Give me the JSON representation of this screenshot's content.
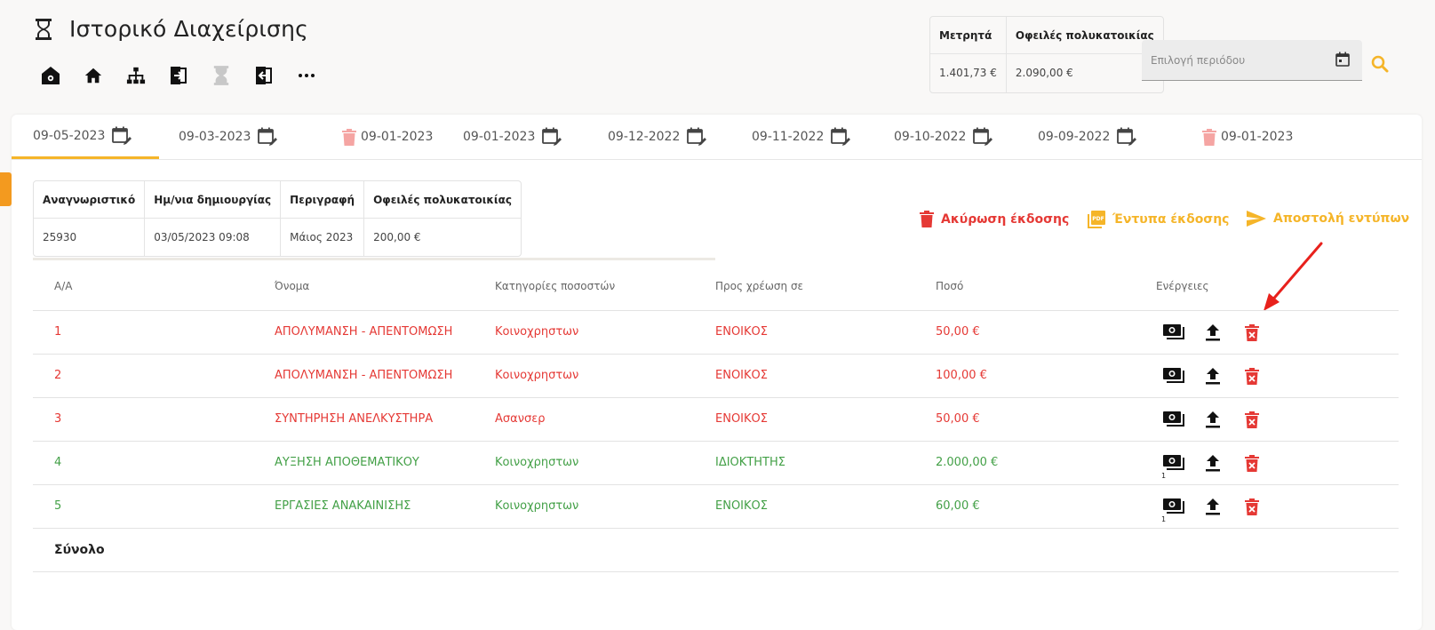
{
  "header": {
    "title": "Ιστορικό Διαχείρισης",
    "nav_icons": [
      "building-settings-icon",
      "home-icon",
      "hierarchy-icon",
      "door-exit-icon",
      "hourglass-icon",
      "door-enter-icon",
      "more-horizontal-icon"
    ]
  },
  "summary": {
    "headers": [
      "Μετρητά",
      "Οφειλές πολυκατοικίας"
    ],
    "values": [
      "1.401,73 €",
      "2.090,00 €"
    ]
  },
  "period": {
    "placeholder": "Επιλογή περιόδου"
  },
  "tabs": [
    {
      "label": "09-05-2023",
      "icon": "calendar-edit-icon",
      "active": true
    },
    {
      "label": "09-03-2023",
      "icon": "calendar-edit-icon"
    },
    {
      "label": "09-01-2023",
      "icon": "trash-icon",
      "deleted": true
    },
    {
      "label": "09-01-2023",
      "icon": "calendar-edit-icon"
    },
    {
      "label": "09-12-2022",
      "icon": "calendar-edit-icon"
    },
    {
      "label": "09-11-2022",
      "icon": "calendar-edit-icon"
    },
    {
      "label": "09-10-2022",
      "icon": "calendar-edit-icon"
    },
    {
      "label": "09-09-2022",
      "icon": "calendar-edit-icon"
    },
    {
      "label": "09-01-2023",
      "icon": "trash-icon",
      "deleted": true
    }
  ],
  "info": {
    "headers": [
      "Αναγνωριστικό",
      "Ημ/νια δημιουργίας",
      "Περιγραφή",
      "Οφειλές πολυκατοικίας"
    ],
    "values": [
      "25930",
      "03/05/2023 09:08",
      "Μάιος 2023",
      "200,00 €"
    ]
  },
  "actions": {
    "cancel": "Ακύρωση έκδοσης",
    "print": "Έντυπα έκδοσης",
    "send": "Αποστολή εντύπων"
  },
  "grid": {
    "headers": [
      "Α/Α",
      "Όνομα",
      "Κατηγορίες ποσοστών",
      "Προς χρέωση σε",
      "Ποσό",
      "Ενέργειες"
    ],
    "rows": [
      {
        "aa": "1",
        "name": "ΑΠΟΛΥΜΑΝΣΗ - ΑΠΕΝΤΟΜΩΣΗ",
        "category": "Κοινοχρηστων",
        "charge_to": "ΕΝΟΙΚΟΣ",
        "amount": "50,00 €",
        "status": "red",
        "receipt_count": ""
      },
      {
        "aa": "2",
        "name": "ΑΠΟΛΥΜΑΝΣΗ - ΑΠΕΝΤΟΜΩΣΗ",
        "category": "Κοινοχρηστων",
        "charge_to": "ΕΝΟΙΚΟΣ",
        "amount": "100,00 €",
        "status": "red",
        "receipt_count": ""
      },
      {
        "aa": "3",
        "name": "ΣΥΝΤΗΡΗΣΗ ΑΝΕΛΚΥΣΤΗΡΑ",
        "category": "Ασανσερ",
        "charge_to": "ΕΝΟΙΚΟΣ",
        "amount": "50,00 €",
        "status": "red",
        "receipt_count": ""
      },
      {
        "aa": "4",
        "name": "ΑΥΞΗΣΗ ΑΠΟΘΕΜΑΤΙΚΟΥ",
        "category": "Κοινοχρηστων",
        "charge_to": "ΙΔΙΟΚΤΗΤΗΣ",
        "amount": "2.000,00 €",
        "status": "green",
        "receipt_count": "1"
      },
      {
        "aa": "5",
        "name": "ΕΡΓΑΣΙΕΣ ΑΝΑΚΑΙΝΙΣΗΣ",
        "category": "Κοινοχρηστων",
        "charge_to": "ΕΝΟΙΚΟΣ",
        "amount": "60,00 €",
        "status": "green",
        "receipt_count": "1"
      }
    ],
    "total_label": "Σύνολο"
  },
  "colors": {
    "accent": "#f5b529",
    "danger": "#e53935",
    "success": "#43a047",
    "annotation_arrow": "#e8211c"
  }
}
